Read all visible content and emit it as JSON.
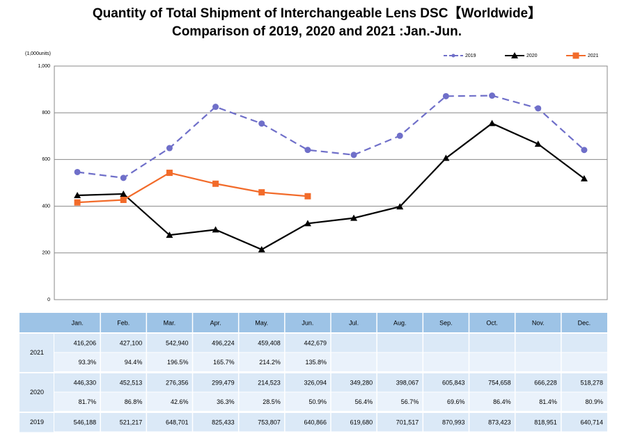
{
  "chart_data": {
    "type": "line",
    "title": "Quantity of Total Shipment of Interchangeable Lens DSC【Worldwide】",
    "subtitle": "Comparison of 2019, 2020 and 2021 :Jan.-Jun.",
    "y_axis_label": "(1,000units)",
    "categories": [
      "Jan.",
      "Feb.",
      "Mar.",
      "Apr.",
      "May.",
      "Jun.",
      "Jul.",
      "Aug.",
      "Sep.",
      "Oct.",
      "Nov.",
      "Dec."
    ],
    "ylim": [
      0,
      1000
    ],
    "yticks": [
      0,
      200,
      400,
      600,
      800,
      {
        "value": 1000,
        "label": "1,000"
      }
    ],
    "grid": true,
    "legend": "top-right",
    "series": [
      {
        "name": "2019",
        "color": "#6f6fc9",
        "dash": true,
        "marker": "circle",
        "values": [
          546.188,
          521.217,
          648.701,
          825.433,
          753.807,
          640.866,
          619.68,
          701.517,
          870.993,
          873.423,
          818.951,
          640.714
        ],
        "value_labels": [
          "546,188",
          "521,217",
          "648,701",
          "825,433",
          "753,807",
          "640,866",
          "619,680",
          "701,517",
          "870,993",
          "873,423",
          "818,951",
          "640,714"
        ]
      },
      {
        "name": "2020",
        "color": "#000000",
        "dash": false,
        "marker": "triangle",
        "values": [
          446.33,
          452.513,
          276.356,
          299.479,
          214.523,
          326.094,
          349.28,
          398.067,
          605.843,
          754.658,
          666.228,
          518.278
        ],
        "value_labels": [
          "446,330",
          "452,513",
          "276,356",
          "299,479",
          "214,523",
          "326,094",
          "349,280",
          "398,067",
          "605,843",
          "754,658",
          "666,228",
          "518,278"
        ],
        "ratio_labels": [
          "81.7%",
          "86.8%",
          "42.6%",
          "36.3%",
          "28.5%",
          "50.9%",
          "56.4%",
          "56.7%",
          "69.6%",
          "86.4%",
          "81.4%",
          "80.9%"
        ]
      },
      {
        "name": "2021",
        "color": "#f26b2a",
        "dash": false,
        "marker": "square",
        "values": [
          416.206,
          427.1,
          542.94,
          496.224,
          459.408,
          442.679,
          null,
          null,
          null,
          null,
          null,
          null
        ],
        "value_labels": [
          "416,206",
          "427,100",
          "542,940",
          "496,224",
          "459,408",
          "442,679",
          null,
          null,
          null,
          null,
          null,
          null
        ],
        "ratio_labels": [
          "93.3%",
          "94.4%",
          "196.5%",
          "165.7%",
          "214.2%",
          "135.8%",
          null,
          null,
          null,
          null,
          null,
          null
        ]
      }
    ]
  }
}
